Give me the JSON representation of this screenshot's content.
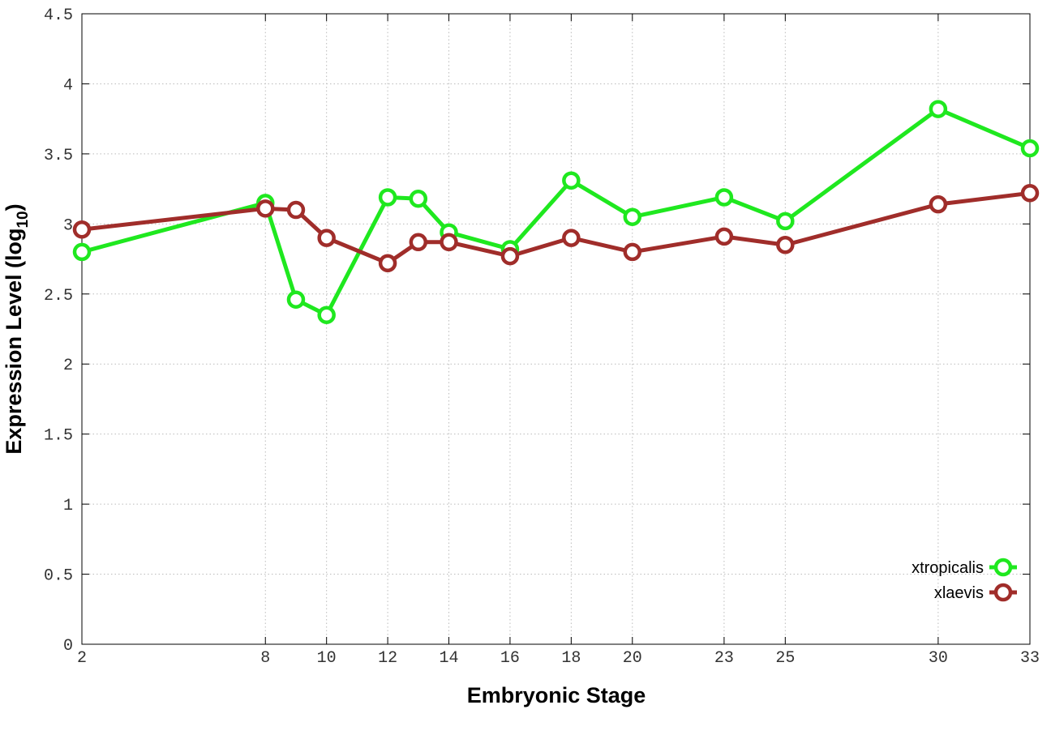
{
  "chart_data": {
    "type": "line",
    "x_label": "Embryonic Stage",
    "y_label": [
      "Expression Level (log",
      "10",
      ")"
    ],
    "x": [
      2,
      8,
      9,
      10,
      12,
      13,
      14,
      16,
      18,
      20,
      23,
      25,
      30,
      33
    ],
    "series": [
      {
        "name": "xtropicalis",
        "color": "#1fe81f",
        "values": [
          2.8,
          3.15,
          2.46,
          2.35,
          3.19,
          3.18,
          2.94,
          2.82,
          3.31,
          3.05,
          3.19,
          3.02,
          3.82,
          3.54
        ]
      },
      {
        "name": "xlaevis",
        "color": "#a02d2a",
        "values": [
          2.96,
          3.11,
          3.1,
          2.9,
          2.72,
          2.87,
          2.87,
          2.77,
          2.9,
          2.8,
          2.91,
          2.85,
          3.14,
          3.22
        ]
      }
    ],
    "xlim": [
      2,
      33
    ],
    "xticks": [
      2,
      8,
      10,
      12,
      14,
      16,
      18,
      20,
      23,
      25,
      30,
      33
    ],
    "ylim": [
      0,
      4.5
    ],
    "yticks": [
      0,
      0.5,
      1,
      1.5,
      2,
      2.5,
      3,
      3.5,
      4,
      4.5
    ],
    "grid": true,
    "legend": "bottom right"
  }
}
